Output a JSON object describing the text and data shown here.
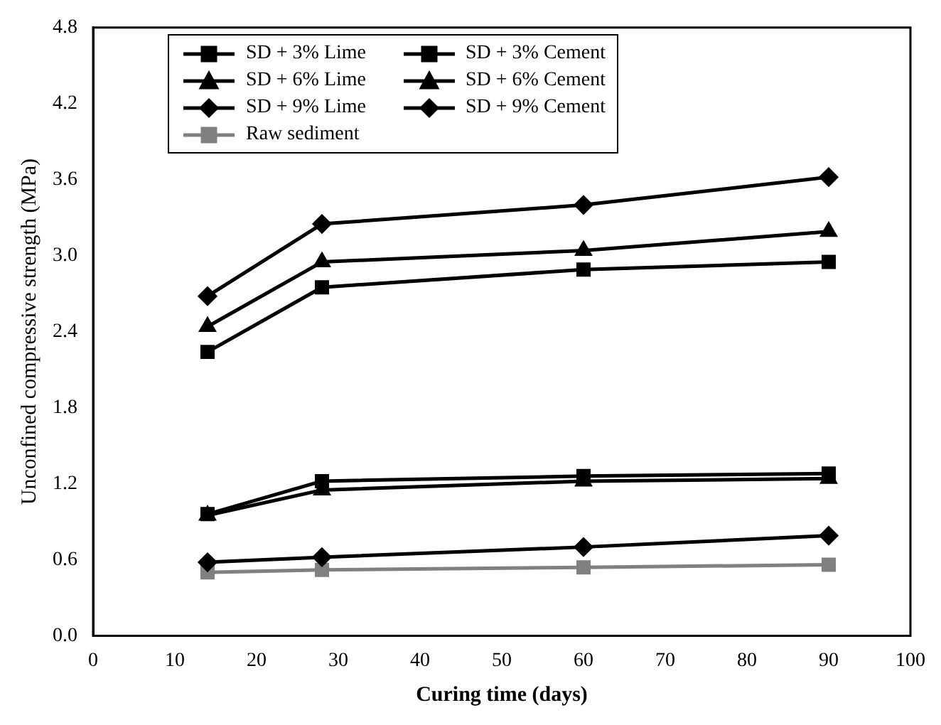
{
  "chart_data": {
    "type": "line",
    "xlabel": "Curing time (days)",
    "ylabel": "Unconfined compressive strength (MPa)",
    "x": [
      14,
      28,
      60,
      90
    ],
    "xlim": [
      0,
      100
    ],
    "xticks": [
      0,
      10,
      20,
      30,
      40,
      50,
      60,
      70,
      80,
      90,
      100
    ],
    "ylim": [
      0,
      4.8
    ],
    "yticks": [
      {
        "value": 0,
        "label": "0.0"
      },
      0.6,
      1.2,
      1.8,
      2.4,
      {
        "value": 3,
        "label": "3.0"
      },
      3.6,
      4.2,
      4.8
    ],
    "grid": false,
    "legend": "top left",
    "line_style": "solid",
    "series": [
      {
        "name": "SD + 3% Lime",
        "color": "#000000",
        "marker": "square",
        "values": [
          0.96,
          1.22,
          1.26,
          1.28
        ]
      },
      {
        "name": "SD + 3% Cement",
        "color": "#000000",
        "marker": "square",
        "values": [
          2.24,
          2.75,
          2.89,
          2.95
        ]
      },
      {
        "name": "SD + 6% Lime",
        "color": "#000000",
        "marker": "triangle",
        "values": [
          0.95,
          1.15,
          1.22,
          1.24
        ]
      },
      {
        "name": "SD + 6% Cement",
        "color": "#000000",
        "marker": "triangle",
        "values": [
          2.44,
          2.95,
          3.04,
          3.19
        ]
      },
      {
        "name": "SD + 9% Lime",
        "color": "#000000",
        "marker": "diamond",
        "values": [
          0.58,
          0.62,
          0.7,
          0.79
        ]
      },
      {
        "name": "SD + 9% Cement",
        "color": "#000000",
        "marker": "diamond",
        "values": [
          2.68,
          3.25,
          3.4,
          3.62
        ]
      },
      {
        "name": "Raw sediment",
        "color": "#808080",
        "marker": "square",
        "values": [
          0.5,
          0.52,
          0.54,
          0.56
        ]
      }
    ]
  }
}
